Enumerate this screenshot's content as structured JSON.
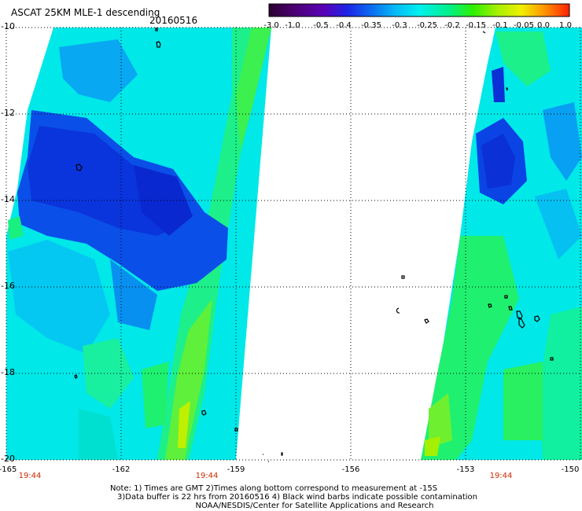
{
  "header": {
    "title": "ASCAT 25KM MLE-1 descending",
    "date": "20160516"
  },
  "colorbar": {
    "tick_labels": [
      "-3.0",
      "-1.0",
      "-0.5",
      "-0.4",
      "-0.35",
      "-0.3",
      "-0.25",
      "-0.2",
      "-0.15",
      "-0.1",
      "-0.05",
      "0.0",
      "1.0"
    ],
    "colors": [
      "#2a0030",
      "#4b006e",
      "#5a00b4",
      "#1f22e6",
      "#0b6cf0",
      "#05b9f5",
      "#00f0f0",
      "#00f08a",
      "#2ef000",
      "#a6f000",
      "#f0f000",
      "#ff9000",
      "#ff2000"
    ]
  },
  "map": {
    "lat_labels": [
      "-10",
      "-12",
      "-14",
      "-16",
      "-18",
      "-20"
    ],
    "lon_labels": [
      "-165",
      "-162",
      "-159",
      "-156",
      "-153",
      "-150"
    ],
    "time_labels": [
      "19:44",
      "19:44",
      "19:44"
    ],
    "swath_colors": {
      "low": "#0b2ad6",
      "mid": "#0a7bf4",
      "cyan": "#00ecec",
      "green": "#18f07a",
      "yellow_green": "#7ef000"
    }
  },
  "footer": {
    "note_line1": "Note: 1) Times are GMT 2)Times along bottom correspond to measurement at -15S",
    "note_line2": "3)Data buffer is 22 hrs from 20160516 4) Black wind barbs indicate possible contamination",
    "note_line3": "NOAA/NESDIS/Center for Satellite Applications and Research"
  }
}
